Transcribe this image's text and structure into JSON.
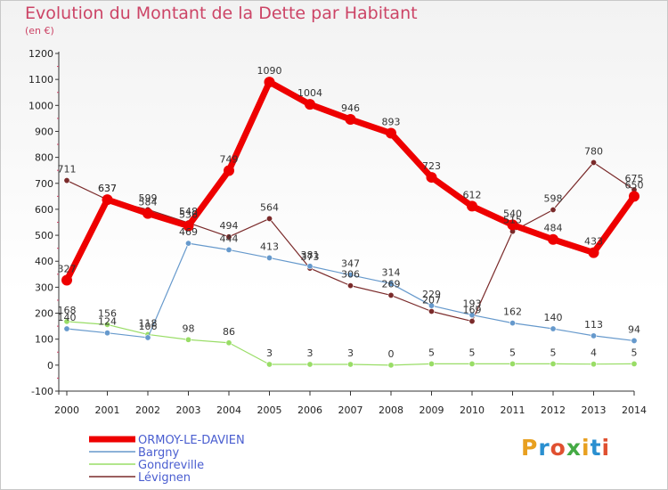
{
  "header": {
    "title": "Evolution du Montant de la Dette par Habitant",
    "subtitle": "(en €)"
  },
  "logo": {
    "text": "Proxiti",
    "colors": [
      "#e8a020",
      "#2a8fd0",
      "#e05030",
      "#44aa44",
      "#e8a020",
      "#2a8fd0",
      "#e05030"
    ]
  },
  "chart_data": {
    "type": "line",
    "title": "Evolution du Montant de la Dette par Habitant",
    "subtitle": "(en €)",
    "x": [
      "2000",
      "2001",
      "2002",
      "2003",
      "2004",
      "2005",
      "2006",
      "2007",
      "2008",
      "2009",
      "2010",
      "2011",
      "2012",
      "2013",
      "2014"
    ],
    "ylim": [
      -100,
      1200
    ],
    "yticks": [
      -100,
      0,
      100,
      200,
      300,
      400,
      500,
      600,
      700,
      800,
      900,
      1000,
      1100,
      1200
    ],
    "grid": false,
    "legend_position": "bottom-left",
    "series": [
      {
        "name": "Lévignen",
        "color": "#7a2a2a",
        "values": [
          711,
          637,
          599,
          548,
          494,
          564,
          373,
          306,
          269,
          207,
          169,
          515,
          598,
          780,
          675
        ]
      },
      {
        "name": "Gondreville",
        "color": "#99dd66",
        "values": [
          168,
          156,
          118,
          98,
          86,
          3,
          3,
          3,
          0,
          5,
          5,
          5,
          5,
          4,
          5
        ]
      },
      {
        "name": "Bargny",
        "color": "#6699cc",
        "values": [
          140,
          124,
          106,
          469,
          444,
          413,
          381,
          347,
          314,
          229,
          193,
          162,
          140,
          113,
          94
        ]
      },
      {
        "name": "ORMOY-LE-DAVIEN",
        "color": "#ee0000",
        "values": [
          327,
          637,
          584,
          536,
          749,
          1090,
          1004,
          946,
          893,
          723,
          612,
          540,
          484,
          433,
          650
        ]
      }
    ]
  }
}
